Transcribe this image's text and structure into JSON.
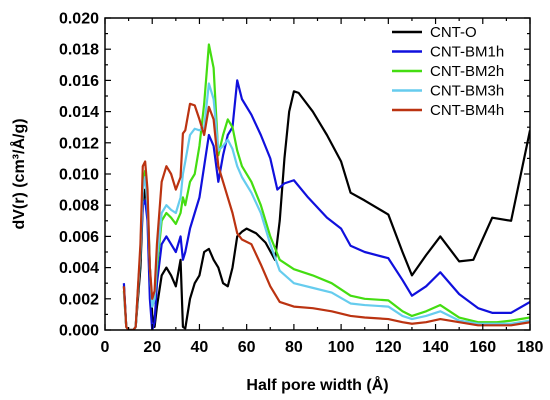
{
  "chart_data": {
    "type": "line",
    "title": "",
    "xlabel": "Half pore width (Å)",
    "ylabel": "dV(r) (cm³/Å/g)",
    "xlim": [
      0,
      180
    ],
    "ylim": [
      0,
      0.02
    ],
    "x_ticks": [
      "0",
      "20",
      "40",
      "60",
      "80",
      "100",
      "120",
      "140",
      "160",
      "180"
    ],
    "y_ticks": [
      "0.000",
      "0.002",
      "0.004",
      "0.006",
      "0.008",
      "0.010",
      "0.012",
      "0.014",
      "0.016",
      "0.018",
      "0.020"
    ],
    "grid": false,
    "legend_position": "top-right",
    "series": [
      {
        "name": "CNT-O",
        "color": "#000000",
        "points": [
          [
            8,
            0.0028
          ],
          [
            9,
            0.0002
          ],
          [
            10,
            0.0
          ],
          [
            12,
            0.0
          ],
          [
            13,
            0.0002
          ],
          [
            15,
            0.004
          ],
          [
            16,
            0.008
          ],
          [
            17,
            0.009
          ],
          [
            18,
            0.0078
          ],
          [
            19,
            0.004
          ],
          [
            20,
            0.001
          ],
          [
            21,
            0.0002
          ],
          [
            22,
            0.0015
          ],
          [
            24,
            0.0035
          ],
          [
            26,
            0.004
          ],
          [
            28,
            0.0035
          ],
          [
            30,
            0.0028
          ],
          [
            32,
            0.0045
          ],
          [
            33,
            0.0002
          ],
          [
            34,
            0.0001
          ],
          [
            36,
            0.002
          ],
          [
            38,
            0.003
          ],
          [
            40,
            0.0035
          ],
          [
            42,
            0.005
          ],
          [
            44,
            0.0052
          ],
          [
            46,
            0.0045
          ],
          [
            48,
            0.004
          ],
          [
            50,
            0.003
          ],
          [
            52,
            0.0028
          ],
          [
            54,
            0.004
          ],
          [
            56,
            0.006
          ],
          [
            58,
            0.0063
          ],
          [
            60,
            0.0065
          ],
          [
            64,
            0.0062
          ],
          [
            68,
            0.0056
          ],
          [
            72,
            0.0045
          ],
          [
            74,
            0.007
          ],
          [
            76,
            0.011
          ],
          [
            78,
            0.014
          ],
          [
            80,
            0.0153
          ],
          [
            82,
            0.0152
          ],
          [
            88,
            0.014
          ],
          [
            94,
            0.0125
          ],
          [
            100,
            0.0108
          ],
          [
            104,
            0.0088
          ],
          [
            110,
            0.0083
          ],
          [
            120,
            0.0074
          ],
          [
            126,
            0.005
          ],
          [
            130,
            0.0035
          ],
          [
            136,
            0.0048
          ],
          [
            142,
            0.006
          ],
          [
            150,
            0.0044
          ],
          [
            156,
            0.0045
          ],
          [
            164,
            0.0072
          ],
          [
            172,
            0.007
          ],
          [
            180,
            0.0128
          ]
        ]
      },
      {
        "name": "CNT-BM1h",
        "color": "#1010dd",
        "points": [
          [
            8,
            0.003
          ],
          [
            9,
            0.0002
          ],
          [
            10,
            0.0
          ],
          [
            12,
            0.0
          ],
          [
            13,
            0.0002
          ],
          [
            15,
            0.005
          ],
          [
            16,
            0.008
          ],
          [
            17,
            0.0083
          ],
          [
            18,
            0.007
          ],
          [
            19,
            0.002
          ],
          [
            20,
            0.0
          ],
          [
            21,
            0.0005
          ],
          [
            22,
            0.003
          ],
          [
            24,
            0.0055
          ],
          [
            26,
            0.006
          ],
          [
            28,
            0.0055
          ],
          [
            30,
            0.005
          ],
          [
            32,
            0.006
          ],
          [
            33,
            0.0045
          ],
          [
            34,
            0.005
          ],
          [
            36,
            0.0065
          ],
          [
            38,
            0.0075
          ],
          [
            40,
            0.0085
          ],
          [
            42,
            0.0105
          ],
          [
            44,
            0.0125
          ],
          [
            46,
            0.0118
          ],
          [
            48,
            0.0095
          ],
          [
            50,
            0.0112
          ],
          [
            52,
            0.0125
          ],
          [
            54,
            0.013
          ],
          [
            56,
            0.016
          ],
          [
            58,
            0.0148
          ],
          [
            62,
            0.0138
          ],
          [
            66,
            0.0125
          ],
          [
            70,
            0.011
          ],
          [
            73,
            0.009
          ],
          [
            76,
            0.0094
          ],
          [
            80,
            0.0096
          ],
          [
            86,
            0.0085
          ],
          [
            94,
            0.0072
          ],
          [
            100,
            0.0065
          ],
          [
            104,
            0.0054
          ],
          [
            110,
            0.005
          ],
          [
            120,
            0.0046
          ],
          [
            126,
            0.0032
          ],
          [
            130,
            0.0022
          ],
          [
            136,
            0.0028
          ],
          [
            142,
            0.0037
          ],
          [
            150,
            0.0023
          ],
          [
            158,
            0.0014
          ],
          [
            164,
            0.0011
          ],
          [
            172,
            0.0011
          ],
          [
            180,
            0.0018
          ]
        ]
      },
      {
        "name": "CNT-BM2h",
        "color": "#44dd11",
        "points": [
          [
            8,
            0.0025
          ],
          [
            9,
            0.0002
          ],
          [
            10,
            0.0
          ],
          [
            12,
            0.0
          ],
          [
            13,
            0.0002
          ],
          [
            15,
            0.005
          ],
          [
            16,
            0.0095
          ],
          [
            17,
            0.0102
          ],
          [
            18,
            0.0085
          ],
          [
            19,
            0.004
          ],
          [
            20,
            0.0015
          ],
          [
            21,
            0.002
          ],
          [
            22,
            0.004
          ],
          [
            24,
            0.007
          ],
          [
            26,
            0.0075
          ],
          [
            28,
            0.0072
          ],
          [
            30,
            0.0068
          ],
          [
            32,
            0.0075
          ],
          [
            33,
            0.0085
          ],
          [
            34,
            0.008
          ],
          [
            36,
            0.0095
          ],
          [
            38,
            0.01
          ],
          [
            40,
            0.0118
          ],
          [
            42,
            0.0145
          ],
          [
            44,
            0.0183
          ],
          [
            46,
            0.0168
          ],
          [
            48,
            0.0112
          ],
          [
            50,
            0.0125
          ],
          [
            52,
            0.0135
          ],
          [
            54,
            0.013
          ],
          [
            56,
            0.0115
          ],
          [
            58,
            0.0105
          ],
          [
            62,
            0.0095
          ],
          [
            66,
            0.008
          ],
          [
            70,
            0.006
          ],
          [
            74,
            0.0045
          ],
          [
            80,
            0.0039
          ],
          [
            88,
            0.0035
          ],
          [
            96,
            0.003
          ],
          [
            104,
            0.0022
          ],
          [
            110,
            0.002
          ],
          [
            120,
            0.0019
          ],
          [
            126,
            0.0012
          ],
          [
            130,
            0.0009
          ],
          [
            136,
            0.0012
          ],
          [
            142,
            0.0016
          ],
          [
            150,
            0.0008
          ],
          [
            158,
            0.0005
          ],
          [
            166,
            0.0005
          ],
          [
            172,
            0.0006
          ],
          [
            180,
            0.0008
          ]
        ]
      },
      {
        "name": "CNT-BM3h",
        "color": "#66ccee",
        "points": [
          [
            8,
            0.0024
          ],
          [
            9,
            0.0002
          ],
          [
            10,
            0.0
          ],
          [
            12,
            0.0
          ],
          [
            13,
            0.0002
          ],
          [
            15,
            0.005
          ],
          [
            16,
            0.009
          ],
          [
            17,
            0.0098
          ],
          [
            18,
            0.008
          ],
          [
            19,
            0.004
          ],
          [
            20,
            0.0015
          ],
          [
            21,
            0.002
          ],
          [
            22,
            0.0045
          ],
          [
            24,
            0.0075
          ],
          [
            26,
            0.008
          ],
          [
            28,
            0.0077
          ],
          [
            30,
            0.0075
          ],
          [
            32,
            0.0085
          ],
          [
            33,
            0.01
          ],
          [
            34,
            0.0108
          ],
          [
            36,
            0.0125
          ],
          [
            38,
            0.0129
          ],
          [
            40,
            0.0128
          ],
          [
            42,
            0.013
          ],
          [
            44,
            0.0158
          ],
          [
            46,
            0.0148
          ],
          [
            48,
            0.0115
          ],
          [
            50,
            0.0118
          ],
          [
            52,
            0.0122
          ],
          [
            54,
            0.0116
          ],
          [
            56,
            0.0105
          ],
          [
            58,
            0.0098
          ],
          [
            62,
            0.0088
          ],
          [
            66,
            0.0075
          ],
          [
            70,
            0.0055
          ],
          [
            74,
            0.0038
          ],
          [
            80,
            0.003
          ],
          [
            88,
            0.0027
          ],
          [
            96,
            0.0024
          ],
          [
            104,
            0.0017
          ],
          [
            110,
            0.0016
          ],
          [
            120,
            0.0015
          ],
          [
            126,
            0.0009
          ],
          [
            130,
            0.0007
          ],
          [
            136,
            0.0009
          ],
          [
            142,
            0.0012
          ],
          [
            150,
            0.0006
          ],
          [
            158,
            0.0004
          ],
          [
            166,
            0.0004
          ],
          [
            172,
            0.0004
          ],
          [
            180,
            0.0006
          ]
        ]
      },
      {
        "name": "CNT-BM4h",
        "color": "#bb3311",
        "points": [
          [
            8,
            0.0028
          ],
          [
            9,
            0.0002
          ],
          [
            10,
            0.0
          ],
          [
            12,
            0.0
          ],
          [
            13,
            0.0002
          ],
          [
            15,
            0.0055
          ],
          [
            16,
            0.0105
          ],
          [
            17,
            0.0108
          ],
          [
            18,
            0.009
          ],
          [
            19,
            0.004
          ],
          [
            20,
            0.002
          ],
          [
            21,
            0.0025
          ],
          [
            22,
            0.0055
          ],
          [
            24,
            0.0095
          ],
          [
            26,
            0.0105
          ],
          [
            28,
            0.01
          ],
          [
            30,
            0.009
          ],
          [
            32,
            0.0098
          ],
          [
            33,
            0.0126
          ],
          [
            34,
            0.0128
          ],
          [
            36,
            0.0145
          ],
          [
            38,
            0.0144
          ],
          [
            40,
            0.0135
          ],
          [
            42,
            0.0125
          ],
          [
            44,
            0.0143
          ],
          [
            46,
            0.0135
          ],
          [
            48,
            0.0105
          ],
          [
            50,
            0.0095
          ],
          [
            52,
            0.0085
          ],
          [
            54,
            0.0075
          ],
          [
            56,
            0.0062
          ],
          [
            58,
            0.0058
          ],
          [
            62,
            0.0055
          ],
          [
            66,
            0.0042
          ],
          [
            70,
            0.0028
          ],
          [
            74,
            0.0018
          ],
          [
            80,
            0.0015
          ],
          [
            88,
            0.0014
          ],
          [
            96,
            0.0012
          ],
          [
            104,
            0.0009
          ],
          [
            110,
            0.0008
          ],
          [
            120,
            0.0007
          ],
          [
            126,
            0.0005
          ],
          [
            130,
            0.0004
          ],
          [
            136,
            0.0005
          ],
          [
            142,
            0.0007
          ],
          [
            150,
            0.0005
          ],
          [
            158,
            0.0003
          ],
          [
            166,
            0.0003
          ],
          [
            172,
            0.0003
          ],
          [
            180,
            0.0005
          ]
        ]
      }
    ]
  }
}
